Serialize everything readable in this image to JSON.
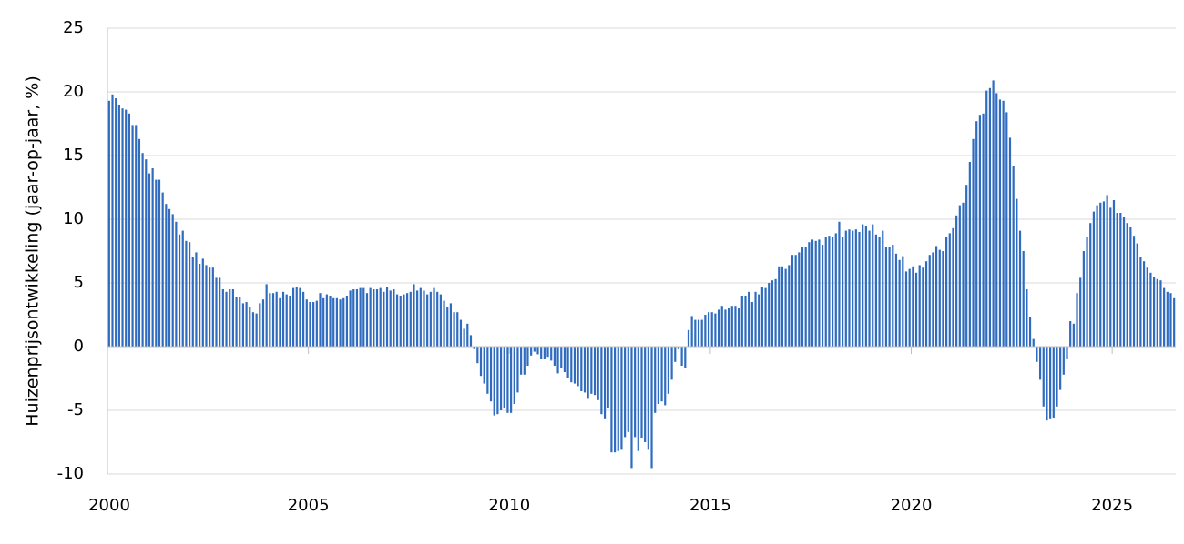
{
  "chart_data": {
    "type": "bar",
    "ylabel": "Huizenprijsontwikkeling (jaar-op-jaar, %)",
    "color": "#2f6cc0",
    "grid": true,
    "ylim": [
      -10,
      25
    ],
    "yticks": [
      -10,
      -5,
      0,
      5,
      10,
      15,
      20,
      25
    ],
    "categories": [
      "2000",
      null,
      null,
      null,
      null,
      null,
      null,
      null,
      null,
      null,
      null,
      null,
      null,
      null,
      null,
      null,
      null,
      null,
      null,
      null,
      null,
      null,
      null,
      null,
      null,
      null,
      null,
      null,
      null,
      null,
      null,
      null,
      null,
      null,
      null,
      null,
      null,
      null,
      null,
      null,
      null,
      null,
      null,
      null,
      null,
      null,
      null,
      null,
      null,
      null,
      null,
      null,
      null,
      null,
      null,
      null,
      null,
      null,
      null,
      null,
      "2005",
      null,
      null,
      null,
      null,
      null,
      null,
      null,
      null,
      null,
      null,
      null,
      null,
      null,
      null,
      null,
      null,
      null,
      null,
      null,
      null,
      null,
      null,
      null,
      null,
      null,
      null,
      null,
      null,
      null,
      null,
      null,
      null,
      null,
      null,
      null,
      null,
      null,
      null,
      null,
      null,
      null,
      null,
      null,
      null,
      null,
      null,
      null,
      null,
      null,
      null,
      null,
      null,
      null,
      null,
      null,
      null,
      null,
      null,
      null,
      "2010",
      null,
      null,
      null,
      null,
      null,
      null,
      null,
      null,
      null,
      null,
      null,
      null,
      null,
      null,
      null,
      null,
      null,
      null,
      null,
      null,
      null,
      null,
      null,
      null,
      null,
      null,
      null,
      null,
      null,
      null,
      null,
      null,
      null,
      null,
      null,
      null,
      null,
      null,
      null,
      null,
      null,
      null,
      null,
      null,
      null,
      null,
      null,
      null,
      null,
      null,
      null,
      null,
      null,
      null,
      null,
      null,
      null,
      null,
      null,
      "2015",
      null,
      null,
      null,
      null,
      null,
      null,
      null,
      null,
      null,
      null,
      null,
      null,
      null,
      null,
      null,
      null,
      null,
      null,
      null,
      null,
      null,
      null,
      null,
      null,
      null,
      null,
      null,
      null,
      null,
      null,
      null,
      null,
      null,
      null,
      null,
      null,
      null,
      null,
      null,
      null,
      null,
      null,
      null,
      null,
      null,
      null,
      null,
      null,
      null,
      null,
      null,
      null,
      null,
      null,
      null,
      null,
      null,
      null,
      null,
      "2020",
      null,
      null,
      null,
      null,
      null,
      null,
      null,
      null,
      null,
      null,
      null,
      null,
      null,
      null,
      null,
      null,
      null,
      null,
      null,
      null,
      null,
      null,
      null,
      null,
      null,
      null,
      null,
      null,
      null,
      null,
      null,
      null,
      null,
      null,
      null,
      null,
      null,
      null,
      null,
      null,
      null,
      null,
      null,
      null,
      null,
      null,
      null,
      null,
      null,
      null,
      null,
      null,
      null,
      null,
      null,
      null,
      null,
      null,
      null,
      "2025",
      null,
      null,
      null,
      null,
      null,
      null,
      null,
      null,
      null,
      null,
      null,
      null,
      null,
      null,
      null,
      null,
      null,
      null
    ],
    "values": [
      19.3,
      19.8,
      19.5,
      19.0,
      18.7,
      18.6,
      18.3,
      17.4,
      17.4,
      16.3,
      15.2,
      14.7,
      13.6,
      14.0,
      13.1,
      13.1,
      12.1,
      11.2,
      10.8,
      10.4,
      9.8,
      8.8,
      9.1,
      8.3,
      8.2,
      7.0,
      7.4,
      6.5,
      6.9,
      6.4,
      6.2,
      6.2,
      5.4,
      5.4,
      4.5,
      4.3,
      4.5,
      4.5,
      3.9,
      3.9,
      3.4,
      3.5,
      3.1,
      2.7,
      2.6,
      3.4,
      3.7,
      4.9,
      4.2,
      4.2,
      4.3,
      3.8,
      4.3,
      4.1,
      4.0,
      4.6,
      4.7,
      4.6,
      4.3,
      3.7,
      3.5,
      3.5,
      3.6,
      4.2,
      3.8,
      4.1,
      4.0,
      3.8,
      3.8,
      3.7,
      3.8,
      4.0,
      4.4,
      4.5,
      4.5,
      4.6,
      4.6,
      4.2,
      4.6,
      4.5,
      4.5,
      4.6,
      4.3,
      4.7,
      4.4,
      4.5,
      4.1,
      4.0,
      4.1,
      4.2,
      4.3,
      4.9,
      4.4,
      4.6,
      4.4,
      4.1,
      4.3,
      4.6,
      4.3,
      4.1,
      3.6,
      3.1,
      3.4,
      2.7,
      2.7,
      2.1,
      1.4,
      1.8,
      0.9,
      -0.2,
      -1.3,
      -2.3,
      -2.9,
      -3.7,
      -4.3,
      -5.4,
      -5.3,
      -5.0,
      -4.8,
      -5.2,
      -5.2,
      -4.5,
      -3.6,
      -2.2,
      -2.2,
      -1.5,
      -0.7,
      -0.4,
      -0.6,
      -1.0,
      -1.0,
      -0.8,
      -1.1,
      -1.5,
      -2.1,
      -1.7,
      -2.0,
      -2.5,
      -2.8,
      -2.9,
      -3.1,
      -3.5,
      -3.6,
      -4.1,
      -3.7,
      -3.8,
      -4.2,
      -5.3,
      -5.7,
      -4.8,
      -8.3,
      -8.3,
      -8.2,
      -8.1,
      -7.1,
      -6.7,
      -9.6,
      -7.1,
      -8.2,
      -7.2,
      -7.5,
      -8.1,
      -9.6,
      -5.2,
      -4.5,
      -4.3,
      -4.6,
      -3.7,
      -2.6,
      -1.2,
      -0.2,
      -1.5,
      -1.7,
      1.3,
      2.4,
      2.1,
      2.1,
      2.1,
      2.5,
      2.7,
      2.7,
      2.6,
      2.9,
      3.2,
      2.9,
      3.0,
      3.2,
      3.2,
      3.0,
      4.0,
      4.0,
      4.3,
      3.5,
      4.3,
      4.1,
      4.7,
      4.6,
      5.0,
      5.2,
      5.3,
      6.3,
      6.3,
      6.1,
      6.4,
      7.2,
      7.2,
      7.4,
      7.8,
      7.8,
      8.2,
      8.4,
      8.3,
      8.4,
      8.0,
      8.6,
      8.7,
      8.6,
      8.9,
      9.8,
      8.6,
      9.1,
      9.2,
      9.1,
      9.2,
      9.0,
      9.6,
      9.5,
      9.1,
      9.6,
      8.8,
      8.6,
      9.1,
      7.8,
      7.8,
      8.0,
      7.3,
      6.8,
      7.1,
      5.9,
      6.1,
      6.3,
      5.8,
      6.4,
      6.2,
      6.7,
      7.2,
      7.4,
      7.9,
      7.6,
      7.5,
      8.6,
      8.9,
      9.3,
      10.3,
      11.1,
      11.3,
      12.7,
      14.5,
      16.3,
      17.7,
      18.2,
      18.3,
      20.1,
      20.3,
      20.9,
      19.9,
      19.4,
      19.3,
      18.4,
      16.4,
      14.2,
      11.6,
      9.1,
      7.5,
      4.5,
      2.3,
      0.6,
      -1.2,
      -2.6,
      -4.7,
      -5.8,
      -5.7,
      -5.6,
      -4.7,
      -3.4,
      -2.2,
      -1.0,
      2.0,
      1.8,
      4.2,
      5.4,
      7.5,
      8.6,
      9.7,
      10.6,
      11.1,
      11.3,
      11.4,
      11.9,
      10.9,
      11.5,
      10.5,
      10.5,
      10.2,
      9.7,
      9.4,
      8.7,
      8.1,
      7.0,
      6.7,
      6.2,
      5.8,
      5.5,
      5.3,
      5.2,
      4.6,
      4.3,
      4.2,
      3.8
    ]
  }
}
